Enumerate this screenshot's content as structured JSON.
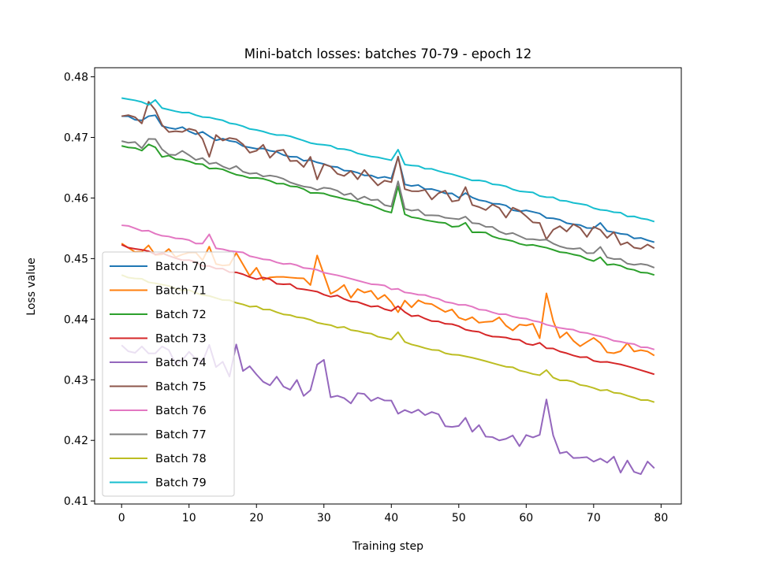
{
  "chart_data": {
    "type": "line",
    "title": "Mini-batch losses: batches 70-79 - epoch 12",
    "xlabel": "Training step",
    "ylabel": "Loss value",
    "xlim": [
      -4,
      83
    ],
    "ylim": [
      0.4095,
      0.4815
    ],
    "x_ticks": [
      0,
      10,
      20,
      30,
      40,
      50,
      60,
      70,
      80
    ],
    "y_ticks": [
      0.41,
      0.42,
      0.43,
      0.44,
      0.45,
      0.46,
      0.47,
      0.48
    ],
    "grid": false,
    "legend_position": "lower-left",
    "series": [
      {
        "name": "Batch 70",
        "color": "#1f77b4",
        "start": 0.4735,
        "end": 0.4527,
        "noise": 0.0003,
        "seed": 3,
        "bumps": [
          [
            4,
            0.0012
          ],
          [
            5,
            0.0012
          ],
          [
            9,
            0.0003
          ],
          [
            12,
            0.0005
          ],
          [
            41,
            0.004
          ],
          [
            51,
            0.001
          ],
          [
            71,
            0.0008
          ]
        ]
      },
      {
        "name": "Batch 71",
        "color": "#ff7f0e",
        "start": 0.4525,
        "end": 0.434,
        "noise": 0.0012,
        "seed": 11,
        "bumps": [
          [
            13,
            0.003
          ],
          [
            17,
            0.003
          ],
          [
            29,
            0.004
          ],
          [
            30,
            0.003
          ],
          [
            40,
            -0.001
          ],
          [
            41,
            -0.002
          ],
          [
            63,
            0.006
          ],
          [
            64,
            0.003
          ]
        ]
      },
      {
        "name": "Batch 72",
        "color": "#2ca02c",
        "start": 0.4686,
        "end": 0.4473,
        "noise": 0.0003,
        "seed": 5,
        "bumps": [
          [
            4,
            0.0014
          ],
          [
            5,
            0.0014
          ],
          [
            9,
            0.0004
          ],
          [
            41,
            0.0042
          ],
          [
            51,
            0.001
          ],
          [
            71,
            0.001
          ]
        ]
      },
      {
        "name": "Batch 73",
        "color": "#d62728",
        "start": 0.4523,
        "end": 0.4309,
        "noise": 0.0003,
        "seed": 7,
        "bumps": [
          [
            41,
            0.0012
          ],
          [
            62,
            0.0006
          ]
        ]
      },
      {
        "name": "Batch 74",
        "color": "#9467bd",
        "start": 0.4357,
        "end": 0.4154,
        "noise": 0.0015,
        "seed": 21,
        "bumps": [
          [
            13,
            0.004
          ],
          [
            17,
            0.003
          ],
          [
            29,
            0.005
          ],
          [
            30,
            0.004
          ],
          [
            41,
            -0.002
          ],
          [
            44,
            0.001
          ],
          [
            63,
            0.006
          ],
          [
            64,
            0.003
          ],
          [
            74,
            -0.001
          ]
        ]
      },
      {
        "name": "Batch 75",
        "color": "#8c564b",
        "start": 0.4735,
        "end": 0.4517,
        "noise": 0.0011,
        "seed": 9,
        "bumps": [
          [
            4,
            0.0032
          ],
          [
            5,
            0.0032
          ],
          [
            13,
            -0.004
          ],
          [
            29,
            -0.003
          ],
          [
            41,
            0.005
          ],
          [
            51,
            0.002
          ],
          [
            63,
            -0.002
          ],
          [
            71,
            0.001
          ]
        ]
      },
      {
        "name": "Batch 76",
        "color": "#e377c2",
        "start": 0.4555,
        "end": 0.435,
        "noise": 0.0002,
        "seed": 13,
        "bumps": [
          [
            13,
            0.0018
          ]
        ]
      },
      {
        "name": "Batch 77",
        "color": "#7f7f7f",
        "start": 0.4694,
        "end": 0.4485,
        "noise": 0.0004,
        "seed": 15,
        "bumps": [
          [
            4,
            0.0018
          ],
          [
            5,
            0.0018
          ],
          [
            9,
            0.0004
          ],
          [
            41,
            0.0045
          ],
          [
            51,
            0.0012
          ],
          [
            71,
            0.001
          ]
        ]
      },
      {
        "name": "Batch 78",
        "color": "#bcbd22",
        "start": 0.4473,
        "end": 0.4263,
        "noise": 0.0002,
        "seed": 17,
        "bumps": [
          [
            41,
            0.0015
          ],
          [
            63,
            0.001
          ]
        ]
      },
      {
        "name": "Batch 79",
        "color": "#17becf",
        "start": 0.4765,
        "end": 0.4561,
        "noise": 0.0002,
        "seed": 19,
        "bumps": [
          [
            5,
            0.001
          ],
          [
            41,
            0.002
          ]
        ]
      }
    ],
    "n_points": 80
  }
}
